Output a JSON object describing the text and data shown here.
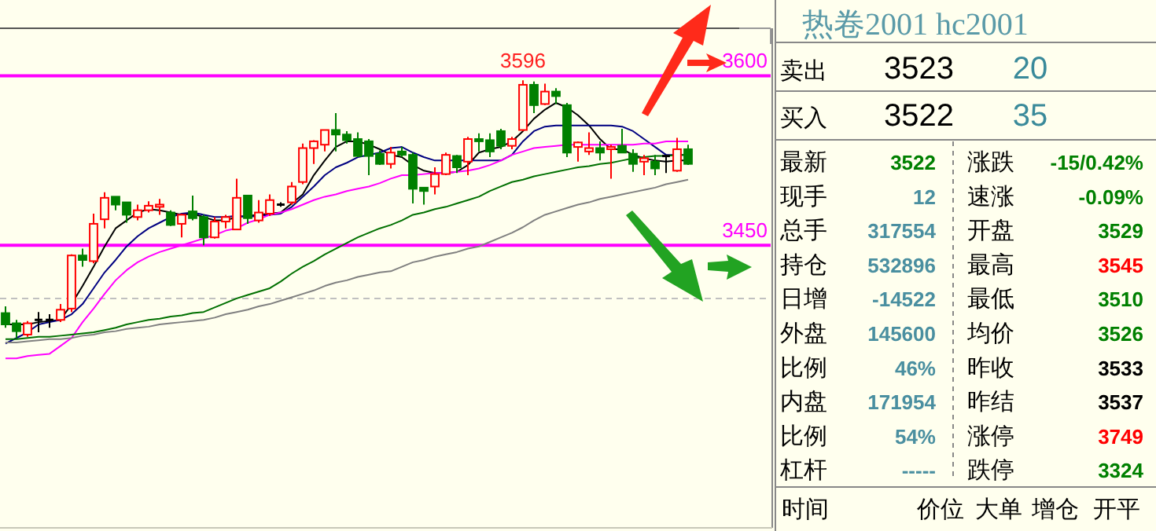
{
  "chart_data": [
    {
      "type": "candlestick",
      "categories": [
        null,
        null,
        null,
        null,
        null,
        null,
        null,
        null,
        null,
        null,
        null,
        null,
        null,
        null,
        null,
        null,
        null,
        null,
        null,
        null,
        null,
        null,
        null,
        null,
        null,
        null,
        null,
        null,
        null,
        null,
        null,
        null,
        null,
        null,
        null,
        null,
        null,
        null,
        null,
        null,
        null,
        null,
        null,
        null,
        null,
        null,
        null,
        null,
        null,
        null,
        null,
        null,
        null,
        null,
        null,
        null,
        null,
        null,
        null,
        null,
        null,
        null,
        null
      ],
      "ohlc": [
        [
          3390,
          3396,
          3377,
          3380
        ],
        [
          3381,
          3384,
          3368,
          3374
        ],
        [
          3371,
          3383,
          3369,
          3381
        ],
        [
          3384,
          3391,
          3373,
          3384
        ],
        [
          3384,
          3389,
          3377,
          3384
        ],
        [
          3384,
          3398,
          3382,
          3393
        ],
        [
          3394,
          3442,
          3391,
          3441
        ],
        [
          3441,
          3447,
          3431,
          3437
        ],
        [
          3436,
          3478,
          3434,
          3469
        ],
        [
          3473,
          3497,
          3465,
          3492
        ],
        [
          3493,
          3493,
          3481,
          3486
        ],
        [
          3488,
          3488,
          3470,
          3477
        ],
        [
          3475,
          3486,
          3472,
          3481
        ],
        [
          3481,
          3489,
          3479,
          3485
        ],
        [
          3484,
          3491,
          3477,
          3486
        ],
        [
          3479,
          3481,
          3467,
          3468
        ],
        [
          3469,
          3478,
          3457,
          3477
        ],
        [
          3480,
          3494,
          3472,
          3474
        ],
        [
          3475,
          3477,
          3450,
          3457
        ],
        [
          3457,
          3475,
          3456,
          3471
        ],
        [
          3471,
          3477,
          3465,
          3475
        ],
        [
          3464,
          3509,
          3464,
          3492
        ],
        [
          3494,
          3494,
          3469,
          3474
        ],
        [
          3472,
          3490,
          3470,
          3479
        ],
        [
          3478,
          3495,
          3476,
          3490
        ],
        [
          3486,
          3488,
          3484,
          3486
        ],
        [
          3488,
          3506,
          3486,
          3502
        ],
        [
          3506,
          3540,
          3504,
          3536
        ],
        [
          3536,
          3543,
          3522,
          3542
        ],
        [
          3539,
          3552,
          3533,
          3552
        ],
        [
          3552,
          3567,
          3533,
          3548
        ],
        [
          3548,
          3551,
          3540,
          3543
        ],
        [
          3544,
          3550,
          3528,
          3529
        ],
        [
          3542,
          3544,
          3512,
          3529
        ],
        [
          3531,
          3534,
          3521,
          3522
        ],
        [
          3522,
          3537,
          3518,
          3532
        ],
        [
          3533,
          3537,
          3528,
          3530
        ],
        [
          3530,
          3532,
          3487,
          3500
        ],
        [
          3501,
          3501,
          3486,
          3498
        ],
        [
          3502,
          3519,
          3495,
          3513
        ],
        [
          3513,
          3532,
          3512,
          3530
        ],
        [
          3529,
          3530,
          3514,
          3519
        ],
        [
          3524,
          3546,
          3512,
          3544
        ],
        [
          3544,
          3549,
          3533,
          3542
        ],
        [
          3543,
          3549,
          3528,
          3533
        ],
        [
          3551,
          3553,
          3535,
          3538
        ],
        [
          3538,
          3546,
          3535,
          3544
        ],
        [
          3552,
          3596,
          3551,
          3592
        ],
        [
          3592,
          3595,
          3567,
          3574
        ],
        [
          3575,
          3593,
          3574,
          3586
        ],
        [
          3586,
          3589,
          3575,
          3582
        ],
        [
          3574,
          3576,
          3528,
          3532
        ],
        [
          3537,
          3542,
          3524,
          3541
        ],
        [
          3533,
          3550,
          3530,
          3536
        ],
        [
          3536,
          3542,
          3525,
          3532
        ],
        [
          3535,
          3539,
          3509,
          3537
        ],
        [
          3538,
          3553,
          3532,
          3532
        ],
        [
          3531,
          3535,
          3515,
          3522
        ],
        [
          3524,
          3530,
          3512,
          3527
        ],
        [
          3524,
          3530,
          3512,
          3518
        ],
        [
          3529,
          3530,
          3514,
          3529
        ],
        [
          3516,
          3545,
          3515,
          3535
        ],
        [
          3535,
          3539,
          3521,
          3522
        ]
      ],
      "colors": [
        "#008000",
        "#008000",
        "#ff0000",
        "#000000",
        "#000000",
        "#ff0000",
        "#ff0000",
        "#008000",
        "#ff0000",
        "#ff0000",
        "#008000",
        "#008000",
        "#ff0000",
        "#ff0000",
        "#ff0000",
        "#008000",
        "#ff0000",
        "#008000",
        "#008000",
        "#ff0000",
        "#ff0000",
        "#ff0000",
        "#008000",
        "#ff0000",
        "#ff0000",
        "#000000",
        "#ff0000",
        "#ff0000",
        "#ff0000",
        "#ff0000",
        "#008000",
        "#008000",
        "#008000",
        "#008000",
        "#008000",
        "#ff0000",
        "#008000",
        "#008000",
        "#008000",
        "#ff0000",
        "#ff0000",
        "#008000",
        "#ff0000",
        "#008000",
        "#008000",
        "#008000",
        "#ff0000",
        "#ff0000",
        "#008000",
        "#ff0000",
        "#008000",
        "#008000",
        "#ff0000",
        "#ff0000",
        "#008000",
        "#ff0000",
        "#008000",
        "#008000",
        "#ff0000",
        "#008000",
        "#000000",
        "#ff0000",
        "#008000"
      ],
      "series": [
        {
          "type": "line",
          "color": "#000000",
          "values": [
            3380,
            3380,
            3380,
            3382,
            3383,
            3384,
            3398,
            3414,
            3431,
            3449,
            3465,
            3472,
            3479,
            3482,
            3481,
            3479,
            3477,
            3478,
            3475,
            3472,
            3472,
            3475,
            3476,
            3477,
            3478,
            3479,
            3487,
            3495,
            3512,
            3525,
            3537,
            3542,
            3542,
            3539,
            3535,
            3530,
            3528,
            3521,
            3516,
            3514,
            3514,
            3515,
            3521,
            3532,
            3535,
            3537,
            3542,
            3551,
            3562,
            3570,
            3576,
            3572,
            3565,
            3556,
            3544,
            3535,
            3535,
            3530,
            3527,
            3525,
            3524,
            3525,
            3525
          ]
        },
        {
          "type": "line",
          "color": "#000080",
          "values": [
            3363,
            3368,
            3373,
            3380,
            3382,
            3384,
            3389,
            3398,
            3412,
            3426,
            3437,
            3449,
            3458,
            3465,
            3470,
            3475,
            3478,
            3479,
            3477,
            3475,
            3475,
            3476,
            3475,
            3476,
            3477,
            3478,
            3484,
            3493,
            3502,
            3512,
            3519,
            3523,
            3528,
            3530,
            3532,
            3536,
            3537,
            3532,
            3528,
            3525,
            3525,
            3525,
            3525,
            3525,
            3525,
            3525,
            3530,
            3542,
            3551,
            3555,
            3556,
            3556,
            3556,
            3556,
            3556,
            3556,
            3555,
            3551,
            3544,
            3537,
            3530,
            3530,
            3530
          ]
        },
        {
          "type": "line",
          "color": "#ff00ff",
          "values": [
            3350,
            3350,
            3352,
            3353,
            3354,
            3361,
            3368,
            3382,
            3394,
            3407,
            3419,
            3428,
            3435,
            3440,
            3444,
            3447,
            3450,
            3453,
            3456,
            3459,
            3463,
            3465,
            3470,
            3473,
            3477,
            3479,
            3482,
            3486,
            3490,
            3493,
            3495,
            3498,
            3500,
            3502,
            3505,
            3509,
            3512,
            3512,
            3513,
            3514,
            3514,
            3515,
            3516,
            3518,
            3521,
            3525,
            3530,
            3533,
            3536,
            3537,
            3538,
            3539,
            3539,
            3539,
            3539,
            3539,
            3539,
            3539,
            3540,
            3540,
            3542,
            3542,
            3542
          ]
        },
        {
          "type": "line",
          "color": "#007000",
          "values": [
            3367,
            3367,
            3368,
            3369,
            3369,
            3370,
            3371,
            3372,
            3373,
            3375,
            3377,
            3380,
            3382,
            3384,
            3385,
            3387,
            3388,
            3390,
            3391,
            3395,
            3399,
            3403,
            3406,
            3409,
            3412,
            3418,
            3425,
            3431,
            3436,
            3442,
            3447,
            3452,
            3457,
            3461,
            3465,
            3468,
            3472,
            3477,
            3479,
            3482,
            3484,
            3487,
            3490,
            3493,
            3498,
            3502,
            3506,
            3508,
            3511,
            3513,
            3515,
            3517,
            3519,
            3520,
            3522,
            3523,
            3525,
            3527,
            3528,
            3529,
            3529,
            3530,
            3530
          ]
        },
        {
          "type": "line",
          "color": "#808080",
          "values": [
            3364,
            3364,
            3365,
            3366,
            3367,
            3367,
            3368,
            3370,
            3371,
            3373,
            3374,
            3376,
            3377,
            3378,
            3380,
            3381,
            3382,
            3383,
            3384,
            3386,
            3389,
            3391,
            3393,
            3396,
            3398,
            3401,
            3404,
            3407,
            3410,
            3414,
            3417,
            3419,
            3422,
            3424,
            3426,
            3427,
            3431,
            3435,
            3437,
            3440,
            3442,
            3444,
            3447,
            3449,
            3453,
            3457,
            3461,
            3466,
            3472,
            3477,
            3480,
            3483,
            3486,
            3488,
            3491,
            3493,
            3495,
            3497,
            3499,
            3501,
            3504,
            3506,
            3508
          ]
        }
      ],
      "ylim": [
        3200,
        3642
      ],
      "yticks": [
        3450,
        3600
      ],
      "ref_lines": [
        {
          "axis": "y",
          "value": 3600,
          "color": "#ff00ff"
        },
        {
          "axis": "y",
          "value": 3450,
          "color": "#ff00ff"
        },
        {
          "axis": "y",
          "value": 3403,
          "label": null,
          "color": "#c0c0c0",
          "line_style": "dashed"
        }
      ],
      "annotations": [
        {
          "text": "3596",
          "y": 3596
        }
      ]
    },
    {
      "type": "other",
      "title": "热卷2001 hc2001",
      "annotations": [
        "卖出",
        "3523",
        "20",
        "买入",
        "3522",
        "35",
        "最新",
        "3522",
        "涨跌",
        "-15/0.42%",
        "现手",
        "12",
        "速涨",
        "-0.09%",
        "总手",
        "317554",
        "开盘",
        "3529",
        "持仓",
        "532896",
        "最高",
        "3545",
        "日增",
        "-14522",
        "最低",
        "3510",
        "外盘",
        "145600",
        "均价",
        "3526",
        "比例",
        "46%",
        "昨收",
        "3533",
        "内盘",
        "171954",
        "昨结",
        "3537",
        "比例",
        "54%",
        "涨停",
        "3749",
        "杠杆",
        "-----",
        "跌停",
        "3324",
        "时间",
        "价位",
        "大单",
        "增仓",
        "开平"
      ],
      "colors": [
        "#000000",
        "#000000",
        "#3a8a9a",
        "#000000",
        "#000000",
        "#3a8a9a",
        "#000000",
        "#008000",
        "#000000",
        "#008000",
        "#000000",
        "#4a8fa0",
        "#000000",
        "#008000",
        "#000000",
        "#4a8fa0",
        "#000000",
        "#008000",
        "#000000",
        "#4a8fa0",
        "#000000",
        "#ff0000",
        "#000000",
        "#4a8fa0",
        "#000000",
        "#008000",
        "#000000",
        "#4a8fa0",
        "#000000",
        "#008000",
        "#000000",
        "#4a8fa0",
        "#000000",
        "#000000",
        "#000000",
        "#4a8fa0",
        "#000000",
        "#000000",
        "#000000",
        "#4a8fa0",
        "#000000",
        "#ff0000",
        "#000000",
        "#4a8fa0",
        "#000000",
        "#008000",
        "#000000",
        "#000000",
        "#000000",
        "#000000",
        "#000000"
      ]
    }
  ]
}
